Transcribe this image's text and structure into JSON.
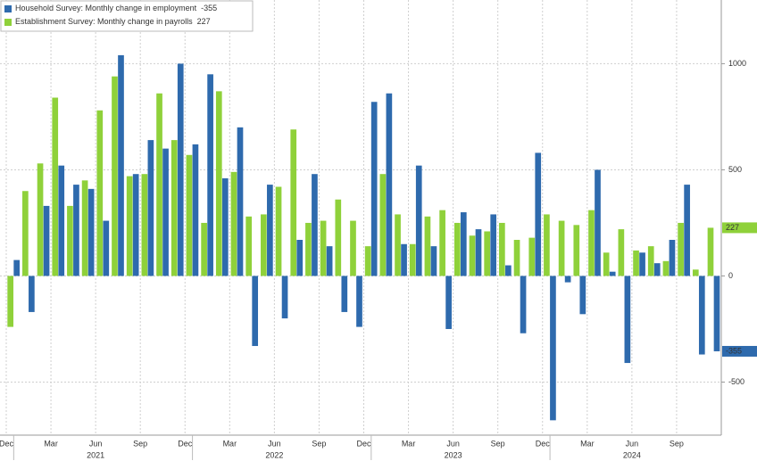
{
  "chart_data": {
    "type": "bar",
    "categories": [
      "Dec",
      null,
      null,
      "Mar",
      null,
      null,
      "Jun",
      null,
      null,
      "Sep",
      null,
      null,
      "Dec",
      null,
      null,
      "Mar",
      null,
      null,
      "Jun",
      null,
      null,
      "Sep",
      null,
      null,
      "Dec",
      null,
      null,
      "Mar",
      null,
      null,
      "Jun",
      null,
      null,
      "Sep",
      null,
      null,
      "Dec",
      null,
      null,
      "Mar",
      null,
      null,
      "Jun",
      null,
      null,
      "Sep",
      null,
      null
    ],
    "x_group_labels": [
      "2021",
      "2022",
      "2023",
      "2024"
    ],
    "series": [
      {
        "name": "Establishment Survey: Monthly change in payrolls",
        "last_label": "227",
        "color": "#8fd13a",
        "values": [
          -240,
          400,
          530,
          840,
          330,
          450,
          780,
          940,
          470,
          480,
          860,
          640,
          570,
          250,
          870,
          490,
          280,
          290,
          420,
          690,
          250,
          260,
          360,
          260,
          140,
          480,
          290,
          150,
          280,
          310,
          250,
          190,
          210,
          250,
          170,
          180,
          290,
          260,
          240,
          310,
          110,
          220,
          120,
          140,
          70,
          250,
          30,
          227
        ]
      },
      {
        "name": "Household Survey: Monthly change in employment",
        "last_label": "-355",
        "color": "#2e6aad",
        "values": [
          75,
          -170,
          330,
          520,
          430,
          410,
          260,
          1040,
          480,
          640,
          600,
          1000,
          620,
          950,
          460,
          700,
          -330,
          430,
          -200,
          170,
          480,
          140,
          -170,
          -240,
          820,
          860,
          150,
          520,
          140,
          -250,
          300,
          220,
          290,
          50,
          -270,
          580,
          -680,
          -30,
          -180,
          500,
          20,
          -410,
          110,
          60,
          170,
          430,
          -370,
          -355
        ]
      }
    ],
    "legend_order": [
      1,
      0
    ],
    "ylim": [
      -750,
      1300
    ],
    "yticks": [
      -500,
      0,
      500,
      1000
    ],
    "grid": true
  }
}
